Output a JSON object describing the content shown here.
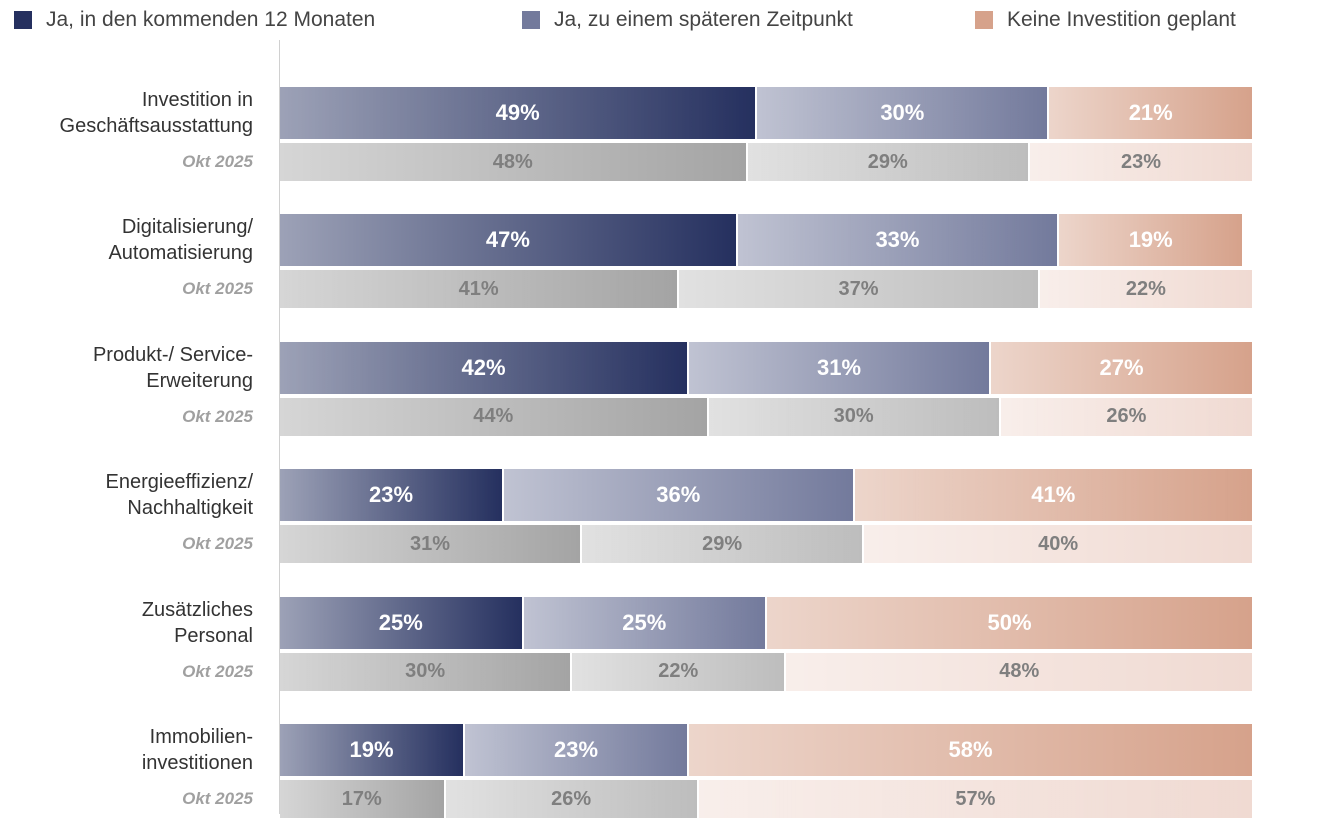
{
  "chart_data": {
    "type": "stacked-bar-horizontal",
    "categories": [
      "Investition in\nGeschäftsausstattung",
      "Digitalisierung/\nAutomatisierung",
      "Produkt-/ Service-\nErweiterung",
      "Energieeffizienz/\nNachhaltigkeit",
      "Zusätzliches\nPersonal",
      "Immobilien-\ninvestitionen"
    ],
    "xlim": [
      0,
      100
    ],
    "series": [
      {
        "name": "Ja, in den kommenden 12 Monaten",
        "color": "#25305f",
        "values": [
          49,
          47,
          42,
          23,
          25,
          19
        ],
        "value_labels": [
          "49%",
          "47%",
          "42%",
          "23%",
          "25%",
          "19%"
        ]
      },
      {
        "name": "Ja, zu einem späteren Zeitpunkt",
        "color": "#737a9c",
        "values": [
          30,
          33,
          31,
          36,
          25,
          23
        ],
        "value_labels": [
          "30%",
          "33%",
          "31%",
          "36%",
          "25%",
          "23%"
        ]
      },
      {
        "name": "Keine Investition geplant",
        "color": "#d6a28b",
        "values": [
          21,
          19,
          27,
          41,
          50,
          58
        ],
        "value_labels": [
          "21%",
          "19%",
          "27%",
          "41%",
          "50%",
          "58%"
        ]
      }
    ],
    "comparison": {
      "label": "Okt 2025",
      "series": [
        {
          "color": "#a4a4a4",
          "values": [
            48,
            41,
            44,
            31,
            30,
            17
          ],
          "value_labels": [
            "48%",
            "41%",
            "44%",
            "31%",
            "30%",
            "17%"
          ]
        },
        {
          "color": "#bdbdbd",
          "values": [
            29,
            37,
            30,
            29,
            22,
            26
          ],
          "value_labels": [
            "29%",
            "37%",
            "30%",
            "29%",
            "22%",
            "26%"
          ]
        },
        {
          "color": "#f0dad2",
          "values": [
            23,
            22,
            26,
            40,
            48,
            57
          ],
          "value_labels": [
            "23%",
            "22%",
            "26%",
            "40%",
            "48%",
            "57%"
          ]
        }
      ]
    }
  }
}
